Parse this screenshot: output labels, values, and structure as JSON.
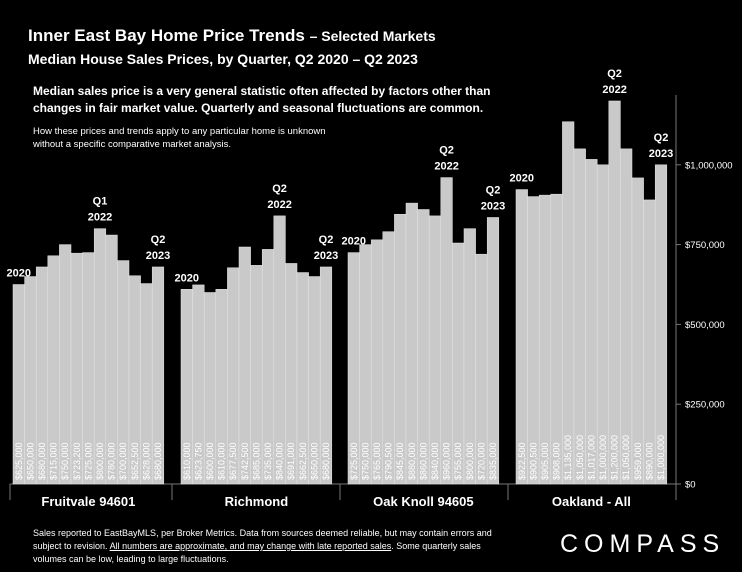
{
  "header": {
    "title_main": "Inner East Bay Home Price Trends",
    "title_sub": "– Selected Markets",
    "subtitle": "Median House Sales Prices, by Quarter, Q2 2020 – Q2 2023",
    "description": "Median sales price is a very general statistic often affected by factors other than changes in fair market value. Quarterly and seasonal fluctuations are common.",
    "note": "How these prices and trends apply to any particular home is unknown without a specific comparative market analysis."
  },
  "footer": {
    "text_a": "Sales reported to EastBayMLS, per Broker Metrics. Data from sources deemed reliable, but may contain errors and subject to revision.",
    "text_b": "All numbers are approximate, and may change with late reported sales",
    "text_c": ". Some quarterly sales volumes can be low, leading to large fluctuations."
  },
  "brand": {
    "logo_text": "COMPASS"
  },
  "colors": {
    "background": "#000000",
    "bar": "#c9c9c9",
    "bar_edge": "#e6e6e6",
    "text": "#ffffff",
    "grid_axis": "#777777"
  },
  "chart_data": {
    "type": "bar",
    "ylim": [
      0,
      1250000
    ],
    "y_ticks": [
      0,
      250000,
      500000,
      750000,
      1000000
    ],
    "y_tick_labels": [
      "$0",
      "$250,000",
      "$500,000",
      "$750,000",
      "$1,000,000"
    ],
    "grid": false,
    "series": [
      {
        "name": "Fruitvale 94601",
        "values": [
          625000,
          650000,
          680000,
          715000,
          750000,
          723200,
          725000,
          800000,
          780000,
          700000,
          652500,
          628000,
          680000
        ],
        "labels": [
          "$625,000",
          "$650,000",
          "$680,000",
          "$715,000",
          "$750,000",
          "$723,200",
          "$725,000",
          "$800,000",
          "$780,000",
          "$700,000",
          "$652,500",
          "$628,000",
          "$680,000"
        ],
        "annotations": [
          {
            "index": 0,
            "lines": [
              "2020"
            ]
          },
          {
            "index": 7,
            "lines": [
              "Q1",
              "2022"
            ]
          },
          {
            "index": 12,
            "lines": [
              "Q2",
              "2023"
            ]
          }
        ]
      },
      {
        "name": "Richmond",
        "values": [
          610000,
          623750,
          600000,
          610000,
          677500,
          742500,
          685000,
          735000,
          840000,
          691000,
          662500,
          650000,
          680000
        ],
        "labels": [
          "$610,000",
          "$623,750",
          "$600,000",
          "$610,000",
          "$677,500",
          "$742,500",
          "$685,000",
          "$735,000",
          "$840,000",
          "$691,000",
          "$662,500",
          "$650,000",
          "$680,000"
        ],
        "annotations": [
          {
            "index": 0,
            "lines": [
              "2020"
            ]
          },
          {
            "index": 8,
            "lines": [
              "Q2",
              "2022"
            ]
          },
          {
            "index": 12,
            "lines": [
              "Q2",
              "2023"
            ]
          }
        ]
      },
      {
        "name": "Oak Knoll 94605",
        "values": [
          725000,
          750000,
          765000,
          790500,
          845000,
          880000,
          860000,
          840000,
          960000,
          755000,
          800000,
          720000,
          835000
        ],
        "labels": [
          "$725,000",
          "$750,000",
          "$765,000",
          "$790,500",
          "$845,000",
          "$880,000",
          "$860,000",
          "$840,000",
          "$960,000",
          "$755,000",
          "$800,000",
          "$720,000",
          "$835,000"
        ],
        "annotations": [
          {
            "index": 0,
            "lines": [
              "2020"
            ]
          },
          {
            "index": 8,
            "lines": [
              "Q2",
              "2022"
            ]
          },
          {
            "index": 12,
            "lines": [
              "Q2",
              "2023"
            ]
          }
        ]
      },
      {
        "name": "Oakland - All",
        "values": [
          922500,
          900500,
          905000,
          908000,
          1135000,
          1050000,
          1017000,
          1000000,
          1200000,
          1050000,
          959000,
          890000,
          1000000
        ],
        "labels": [
          "$922,500",
          "$900,500",
          "$905,000",
          "$908,000",
          "$1,135,000",
          "$1,050,000",
          "$1,017,000",
          "$1,000,000",
          "$1,200,000",
          "$1,050,000",
          "$959,000",
          "$890,000",
          "$1,000,000"
        ],
        "annotations": [
          {
            "index": 0,
            "lines": [
              "2020"
            ]
          },
          {
            "index": 8,
            "lines": [
              "Q2",
              "2022"
            ]
          },
          {
            "index": 12,
            "lines": [
              "Q2",
              "2023"
            ]
          }
        ]
      }
    ]
  }
}
